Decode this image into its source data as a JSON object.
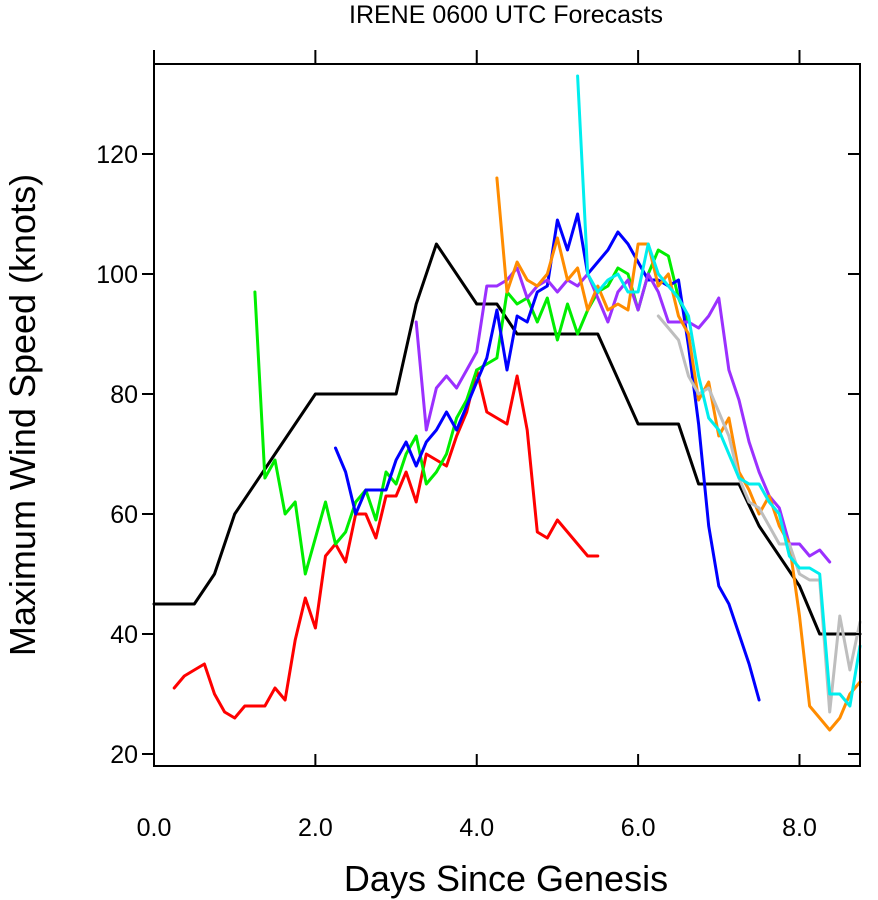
{
  "chart_data": {
    "type": "line",
    "title": "IRENE 0600 UTC Forecasts",
    "xlabel": "Days Since Genesis",
    "ylabel": "Maximum Wind Speed (knots)",
    "xlim": [
      0,
      8.75
    ],
    "ylim": [
      18,
      135
    ],
    "x_ticks": [
      0,
      2,
      4,
      6,
      8
    ],
    "x_tick_labels": [
      "0.0",
      "2.0",
      "4.0",
      "6.0",
      "8.0"
    ],
    "y_ticks": [
      20,
      40,
      60,
      80,
      100,
      120
    ],
    "y_tick_labels": [
      "20",
      "40",
      "60",
      "80",
      "100",
      "120"
    ],
    "grid": false,
    "series": [
      {
        "color": "#000000",
        "points": [
          [
            0,
            45
          ],
          [
            0.5,
            45
          ],
          [
            0.75,
            50
          ],
          [
            1,
            60
          ],
          [
            1.5,
            70
          ],
          [
            2,
            80
          ],
          [
            2.5,
            80
          ],
          [
            3,
            80
          ],
          [
            3.25,
            95
          ],
          [
            3.5,
            105
          ],
          [
            4,
            95
          ],
          [
            4.25,
            95
          ],
          [
            4.5,
            90
          ],
          [
            5,
            90
          ],
          [
            5.5,
            90
          ],
          [
            6,
            75
          ],
          [
            6.5,
            75
          ],
          [
            6.75,
            65
          ],
          [
            7,
            65
          ],
          [
            7.25,
            65
          ],
          [
            7.5,
            58
          ],
          [
            8,
            48
          ],
          [
            8.25,
            40
          ],
          [
            8.5,
            40
          ],
          [
            8.75,
            40
          ]
        ]
      },
      {
        "color": "#ff0000",
        "points": [
          [
            0.25,
            31
          ],
          [
            0.375,
            33
          ],
          [
            0.5,
            34
          ],
          [
            0.625,
            35
          ],
          [
            0.75,
            30
          ],
          [
            0.875,
            27
          ],
          [
            1,
            26
          ],
          [
            1.125,
            28
          ],
          [
            1.25,
            28
          ],
          [
            1.375,
            28
          ],
          [
            1.5,
            31
          ],
          [
            1.625,
            29
          ],
          [
            1.75,
            39
          ],
          [
            1.875,
            46
          ],
          [
            2,
            41
          ],
          [
            2.125,
            53
          ],
          [
            2.25,
            55
          ],
          [
            2.375,
            52
          ],
          [
            2.5,
            60
          ],
          [
            2.625,
            60
          ],
          [
            2.75,
            56
          ],
          [
            2.875,
            63
          ],
          [
            3,
            63
          ],
          [
            3.125,
            67
          ],
          [
            3.25,
            62
          ],
          [
            3.375,
            70
          ],
          [
            3.5,
            69
          ],
          [
            3.625,
            68
          ],
          [
            3.75,
            73
          ],
          [
            3.875,
            77
          ],
          [
            4,
            84
          ],
          [
            4.125,
            77
          ],
          [
            4.25,
            76
          ],
          [
            4.375,
            75
          ],
          [
            4.5,
            83
          ],
          [
            4.625,
            74
          ],
          [
            4.75,
            57
          ],
          [
            4.875,
            56
          ],
          [
            5,
            59
          ],
          [
            5.125,
            57
          ],
          [
            5.25,
            55
          ],
          [
            5.375,
            53
          ],
          [
            5.5,
            53
          ]
        ]
      },
      {
        "color": "#00ee00",
        "points": [
          [
            1.25,
            97
          ],
          [
            1.375,
            66
          ],
          [
            1.5,
            69
          ],
          [
            1.625,
            60
          ],
          [
            1.75,
            62
          ],
          [
            1.875,
            50
          ],
          [
            2,
            56
          ],
          [
            2.125,
            62
          ],
          [
            2.25,
            55
          ],
          [
            2.375,
            57
          ],
          [
            2.5,
            62
          ],
          [
            2.625,
            64
          ],
          [
            2.75,
            59
          ],
          [
            2.875,
            67
          ],
          [
            3,
            65
          ],
          [
            3.125,
            70
          ],
          [
            3.25,
            73
          ],
          [
            3.375,
            65
          ],
          [
            3.5,
            67
          ],
          [
            3.625,
            70
          ],
          [
            3.75,
            76
          ],
          [
            3.875,
            79
          ],
          [
            4,
            84
          ],
          [
            4.125,
            85
          ],
          [
            4.25,
            86
          ],
          [
            4.375,
            97
          ],
          [
            4.5,
            95
          ],
          [
            4.625,
            96
          ],
          [
            4.75,
            92
          ],
          [
            4.875,
            96
          ],
          [
            5,
            89
          ],
          [
            5.125,
            95
          ],
          [
            5.25,
            90
          ],
          [
            5.375,
            94
          ],
          [
            5.5,
            97
          ],
          [
            5.625,
            98
          ],
          [
            5.75,
            101
          ],
          [
            5.875,
            100
          ],
          [
            6,
            94
          ],
          [
            6.125,
            100
          ],
          [
            6.25,
            104
          ],
          [
            6.375,
            103
          ],
          [
            6.5,
            96
          ],
          [
            6.625,
            92
          ]
        ]
      },
      {
        "color": "#0000ff",
        "points": [
          [
            2.25,
            71
          ],
          [
            2.375,
            67
          ],
          [
            2.5,
            60
          ],
          [
            2.625,
            64
          ],
          [
            2.75,
            64
          ],
          [
            2.875,
            64
          ],
          [
            3,
            69
          ],
          [
            3.125,
            72
          ],
          [
            3.25,
            68
          ],
          [
            3.375,
            72
          ],
          [
            3.5,
            74
          ],
          [
            3.625,
            77
          ],
          [
            3.75,
            74
          ],
          [
            3.875,
            78
          ],
          [
            4,
            82
          ],
          [
            4.125,
            86
          ],
          [
            4.25,
            94
          ],
          [
            4.375,
            84
          ],
          [
            4.5,
            93
          ],
          [
            4.625,
            92
          ],
          [
            4.75,
            97
          ],
          [
            4.875,
            98
          ],
          [
            5,
            109
          ],
          [
            5.125,
            104
          ],
          [
            5.25,
            110
          ],
          [
            5.375,
            100
          ],
          [
            5.5,
            102
          ],
          [
            5.625,
            104
          ],
          [
            5.75,
            107
          ],
          [
            5.875,
            105
          ],
          [
            6,
            102
          ],
          [
            6.125,
            99
          ],
          [
            6.25,
            99
          ],
          [
            6.375,
            98
          ],
          [
            6.5,
            99
          ],
          [
            6.625,
            88
          ],
          [
            6.75,
            75
          ],
          [
            6.875,
            58
          ],
          [
            7,
            48
          ],
          [
            7.125,
            45
          ],
          [
            7.25,
            40
          ],
          [
            7.375,
            35
          ],
          [
            7.5,
            29
          ]
        ]
      },
      {
        "color": "#9b30ff",
        "points": [
          [
            3.25,
            92
          ],
          [
            3.375,
            74
          ],
          [
            3.5,
            81
          ],
          [
            3.625,
            83
          ],
          [
            3.75,
            81
          ],
          [
            3.875,
            84
          ],
          [
            4,
            87
          ],
          [
            4.125,
            98
          ],
          [
            4.25,
            98
          ],
          [
            4.375,
            99
          ],
          [
            4.5,
            101
          ],
          [
            4.625,
            96
          ],
          [
            4.75,
            98
          ],
          [
            4.875,
            99
          ],
          [
            5,
            97
          ],
          [
            5.125,
            99
          ],
          [
            5.25,
            98
          ],
          [
            5.375,
            100
          ],
          [
            5.5,
            96
          ],
          [
            5.625,
            92
          ],
          [
            5.75,
            97
          ],
          [
            5.875,
            99
          ],
          [
            6,
            94
          ],
          [
            6.125,
            100
          ],
          [
            6.25,
            97
          ],
          [
            6.375,
            92
          ],
          [
            6.5,
            92
          ],
          [
            6.625,
            92
          ],
          [
            6.75,
            91
          ],
          [
            6.875,
            93
          ],
          [
            7,
            96
          ],
          [
            7.125,
            84
          ],
          [
            7.25,
            79
          ],
          [
            7.375,
            72
          ],
          [
            7.5,
            67
          ],
          [
            7.625,
            63
          ],
          [
            7.75,
            61
          ],
          [
            7.875,
            55
          ],
          [
            8,
            55
          ],
          [
            8.125,
            53
          ],
          [
            8.25,
            54
          ],
          [
            8.375,
            52
          ]
        ]
      },
      {
        "color": "#ff8c00",
        "points": [
          [
            4.25,
            116
          ],
          [
            4.375,
            97
          ],
          [
            4.5,
            102
          ],
          [
            4.625,
            99
          ],
          [
            4.75,
            98
          ],
          [
            4.875,
            100
          ],
          [
            5,
            106
          ],
          [
            5.125,
            99
          ],
          [
            5.25,
            101
          ],
          [
            5.375,
            94
          ],
          [
            5.5,
            98
          ],
          [
            5.625,
            94
          ],
          [
            5.75,
            95
          ],
          [
            5.875,
            94
          ],
          [
            6,
            105
          ],
          [
            6.125,
            105
          ],
          [
            6.25,
            98
          ],
          [
            6.375,
            100
          ],
          [
            6.5,
            93
          ],
          [
            6.625,
            90
          ],
          [
            6.75,
            79
          ],
          [
            6.875,
            82
          ],
          [
            7,
            73
          ],
          [
            7.125,
            76
          ],
          [
            7.25,
            67
          ],
          [
            7.375,
            64
          ],
          [
            7.5,
            60
          ],
          [
            7.625,
            63
          ],
          [
            7.75,
            58
          ],
          [
            7.875,
            55
          ],
          [
            8,
            43
          ],
          [
            8.125,
            28
          ],
          [
            8.25,
            26
          ],
          [
            8.375,
            24
          ],
          [
            8.5,
            26
          ],
          [
            8.625,
            30
          ],
          [
            8.75,
            32
          ]
        ]
      },
      {
        "color": "#bebebe",
        "points": [
          [
            6.25,
            93
          ],
          [
            6.375,
            91
          ],
          [
            6.5,
            89
          ],
          [
            6.625,
            83
          ],
          [
            6.75,
            80
          ],
          [
            6.875,
            81
          ],
          [
            7,
            77
          ],
          [
            7.125,
            73
          ],
          [
            7.25,
            66
          ],
          [
            7.375,
            62
          ],
          [
            7.5,
            61
          ],
          [
            7.625,
            58
          ],
          [
            7.75,
            55
          ],
          [
            7.875,
            55
          ],
          [
            8,
            50
          ],
          [
            8.125,
            49
          ],
          [
            8.25,
            49
          ],
          [
            8.375,
            27
          ],
          [
            8.5,
            43
          ],
          [
            8.625,
            34
          ],
          [
            8.75,
            42
          ]
        ]
      },
      {
        "color": "#00eeee",
        "points": [
          [
            5.25,
            133
          ],
          [
            5.375,
            100
          ],
          [
            5.5,
            97
          ],
          [
            5.625,
            99
          ],
          [
            5.75,
            100
          ],
          [
            5.875,
            97
          ],
          [
            6,
            97
          ],
          [
            6.125,
            105
          ],
          [
            6.25,
            100
          ],
          [
            6.375,
            98
          ],
          [
            6.5,
            96
          ],
          [
            6.625,
            93
          ],
          [
            6.75,
            83
          ],
          [
            6.875,
            76
          ],
          [
            7,
            74
          ],
          [
            7.125,
            70
          ],
          [
            7.25,
            66
          ],
          [
            7.375,
            65
          ],
          [
            7.5,
            65
          ],
          [
            7.625,
            62
          ],
          [
            7.75,
            60
          ],
          [
            7.875,
            53
          ],
          [
            8,
            51
          ],
          [
            8.125,
            51
          ],
          [
            8.25,
            50
          ],
          [
            8.375,
            30
          ],
          [
            8.5,
            30
          ],
          [
            8.625,
            28
          ],
          [
            8.75,
            38
          ]
        ]
      }
    ]
  }
}
